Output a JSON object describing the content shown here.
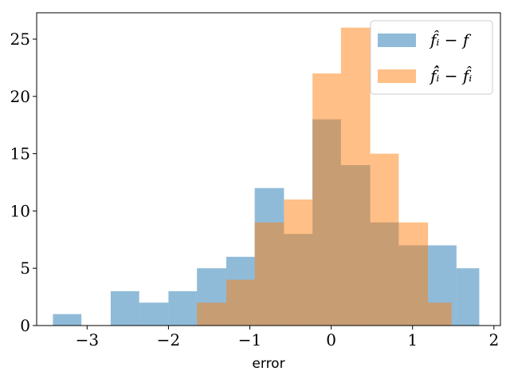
{
  "chart_data": {
    "type": "histogram",
    "xlabel": "error",
    "ylabel": "",
    "xlim": [
      -3.62,
      2.08
    ],
    "ylim": [
      0,
      27.3
    ],
    "xticks": [
      -3,
      -2,
      -1,
      0,
      1,
      2
    ],
    "xtick_labels": [
      "−3",
      "−2",
      "−1",
      "0",
      "1",
      "2"
    ],
    "yticks": [
      0,
      5,
      10,
      15,
      20,
      25
    ],
    "ytick_labels": [
      "0",
      "5",
      "10",
      "15",
      "20",
      "25"
    ],
    "grid": false,
    "legend_position": "top-right",
    "series": [
      {
        "name": "f̂ᵢ − f",
        "color": "#1f77b4",
        "opacity": 0.5,
        "bin_edges": [
          -3.42,
          -3.07,
          -2.71,
          -2.36,
          -2.0,
          -1.65,
          -1.29,
          -0.94,
          -0.58,
          -0.23,
          0.12,
          0.48,
          0.83,
          1.19,
          1.54,
          1.82
        ],
        "counts": [
          1,
          0,
          3,
          2,
          3,
          5,
          6,
          12,
          8,
          18,
          14,
          9,
          7,
          7,
          5
        ]
      },
      {
        "name": "f̂̂ᵢ − f̂ᵢ",
        "color": "#ff7f0e",
        "opacity": 0.5,
        "bin_edges": [
          -1.65,
          -1.29,
          -0.94,
          -0.58,
          -0.23,
          0.12,
          0.48,
          0.83,
          1.19,
          1.48
        ],
        "counts": [
          2,
          4,
          9,
          11,
          22,
          26,
          15,
          9,
          2
        ]
      }
    ]
  }
}
